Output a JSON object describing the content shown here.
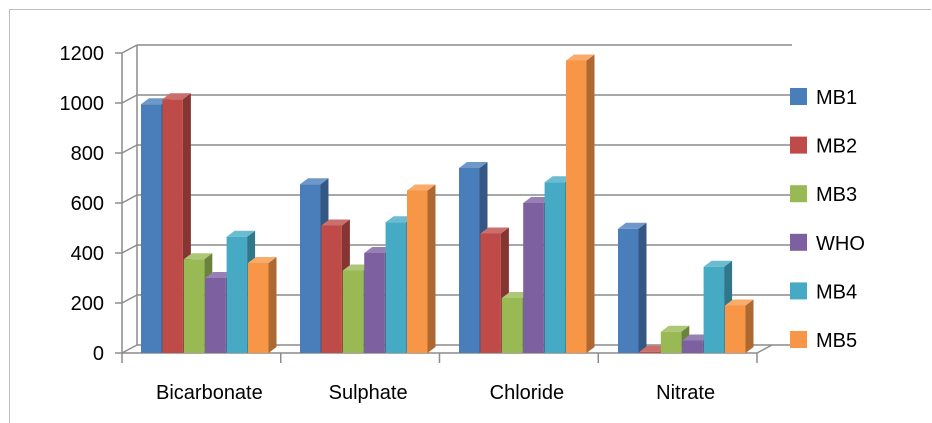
{
  "chart_data": {
    "type": "bar",
    "style": "3d-clustered-column",
    "categories": [
      "Bicarbonate",
      "Sulphate",
      "Chloride",
      "Nitrate"
    ],
    "series": [
      {
        "name": "MB1",
        "color": "#4A7EBB",
        "values": [
          995,
          675,
          740,
          497
        ]
      },
      {
        "name": "MB2",
        "color": "#BE4B48",
        "values": [
          1015,
          510,
          478,
          5
        ]
      },
      {
        "name": "MB3",
        "color": "#98B954",
        "values": [
          375,
          330,
          220,
          85
        ]
      },
      {
        "name": "WHO",
        "color": "#7D60A0",
        "values": [
          300,
          400,
          600,
          50
        ]
      },
      {
        "name": "MB4",
        "color": "#46AAC5",
        "values": [
          465,
          523,
          683,
          345
        ]
      },
      {
        "name": "MB5",
        "color": "#F79646",
        "values": [
          360,
          650,
          1170,
          190
        ]
      }
    ],
    "yticks": [
      0,
      200,
      400,
      600,
      800,
      1000,
      1200
    ],
    "ylim": [
      0,
      1200
    ],
    "grid": true,
    "legend": "right",
    "title": "",
    "xlabel": "",
    "ylabel": ""
  }
}
